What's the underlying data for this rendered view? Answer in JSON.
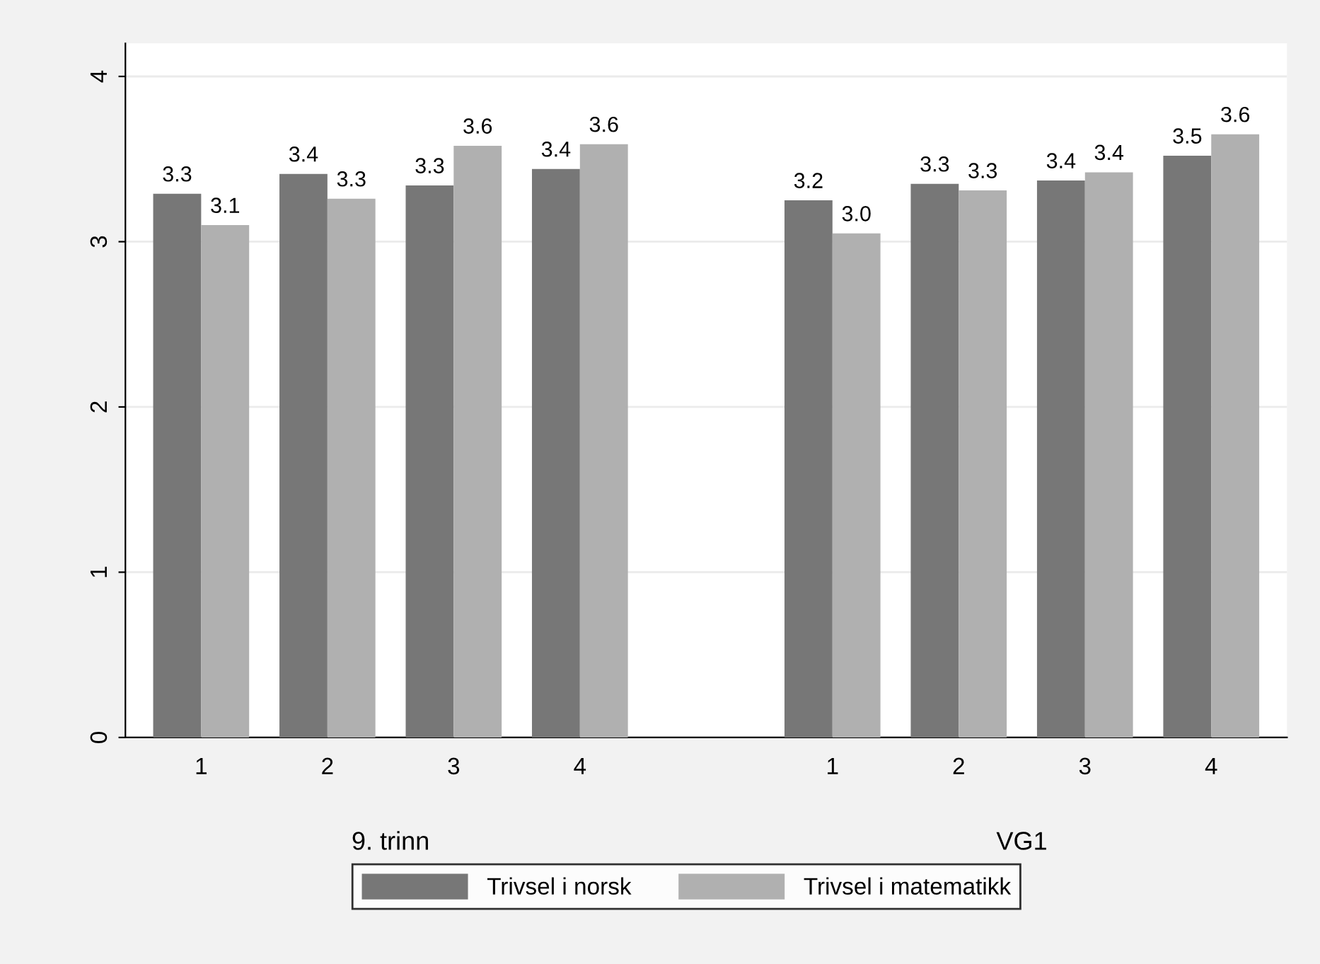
{
  "chart_data": {
    "type": "bar",
    "categories": [
      "1",
      "2",
      "3",
      "4",
      null,
      "1",
      "2",
      "3",
      "4"
    ],
    "series": [
      {
        "name": "Trivsel i norsk",
        "color": "#777777",
        "values": [
          3.29,
          3.41,
          3.34,
          3.44,
          null,
          3.25,
          3.35,
          3.37,
          3.52
        ],
        "value_labels": [
          "3.3",
          "3.4",
          "3.3",
          "3.4",
          null,
          "3.2",
          "3.3",
          "3.4",
          "3.5"
        ]
      },
      {
        "name": "Trivsel i matematikk",
        "color": "#b0b0b0",
        "values": [
          3.1,
          3.26,
          3.58,
          3.59,
          null,
          3.05,
          3.31,
          3.42,
          3.65
        ],
        "value_labels": [
          "3.1",
          "3.3",
          "3.6",
          "3.6",
          null,
          "3.0",
          "3.3",
          "3.4",
          "3.6"
        ]
      }
    ],
    "annotations": [
      "9. trinn",
      "VG1"
    ],
    "ylim": [
      0,
      4.2
    ],
    "yticks": [
      0,
      1,
      2,
      3,
      4
    ],
    "grid": "y",
    "legend": "bottom"
  }
}
